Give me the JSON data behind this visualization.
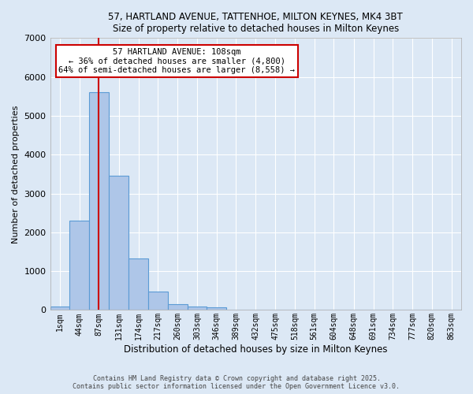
{
  "title_line1": "57, HARTLAND AVENUE, TATTENHOE, MILTON KEYNES, MK4 3BT",
  "title_line2": "Size of property relative to detached houses in Milton Keynes",
  "xlabel": "Distribution of detached houses by size in Milton Keynes",
  "ylabel": "Number of detached properties",
  "bin_labels": [
    "1sqm",
    "44sqm",
    "87sqm",
    "131sqm",
    "174sqm",
    "217sqm",
    "260sqm",
    "303sqm",
    "346sqm",
    "389sqm",
    "432sqm",
    "475sqm",
    "518sqm",
    "561sqm",
    "604sqm",
    "648sqm",
    "691sqm",
    "734sqm",
    "777sqm",
    "820sqm",
    "863sqm"
  ],
  "bar_heights": [
    80,
    2300,
    5600,
    3450,
    1320,
    480,
    160,
    80,
    60,
    0,
    0,
    0,
    0,
    0,
    0,
    0,
    0,
    0,
    0,
    0,
    0
  ],
  "bar_color": "#aec6e8",
  "bar_edge_color": "#5b9bd5",
  "bg_color": "#dce8f5",
  "grid_color": "#ffffff",
  "vline_x": 108,
  "vline_color": "#cc0000",
  "annotation_title": "57 HARTLAND AVENUE: 108sqm",
  "annotation_line2": "← 36% of detached houses are smaller (4,800)",
  "annotation_line3": "64% of semi-detached houses are larger (8,558) →",
  "annotation_box_color": "#ffffff",
  "annotation_border_color": "#cc0000",
  "ylim": [
    0,
    7000
  ],
  "footer_line1": "Contains HM Land Registry data © Crown copyright and database right 2025.",
  "footer_line2": "Contains public sector information licensed under the Open Government Licence v3.0.",
  "bin_width": 43
}
